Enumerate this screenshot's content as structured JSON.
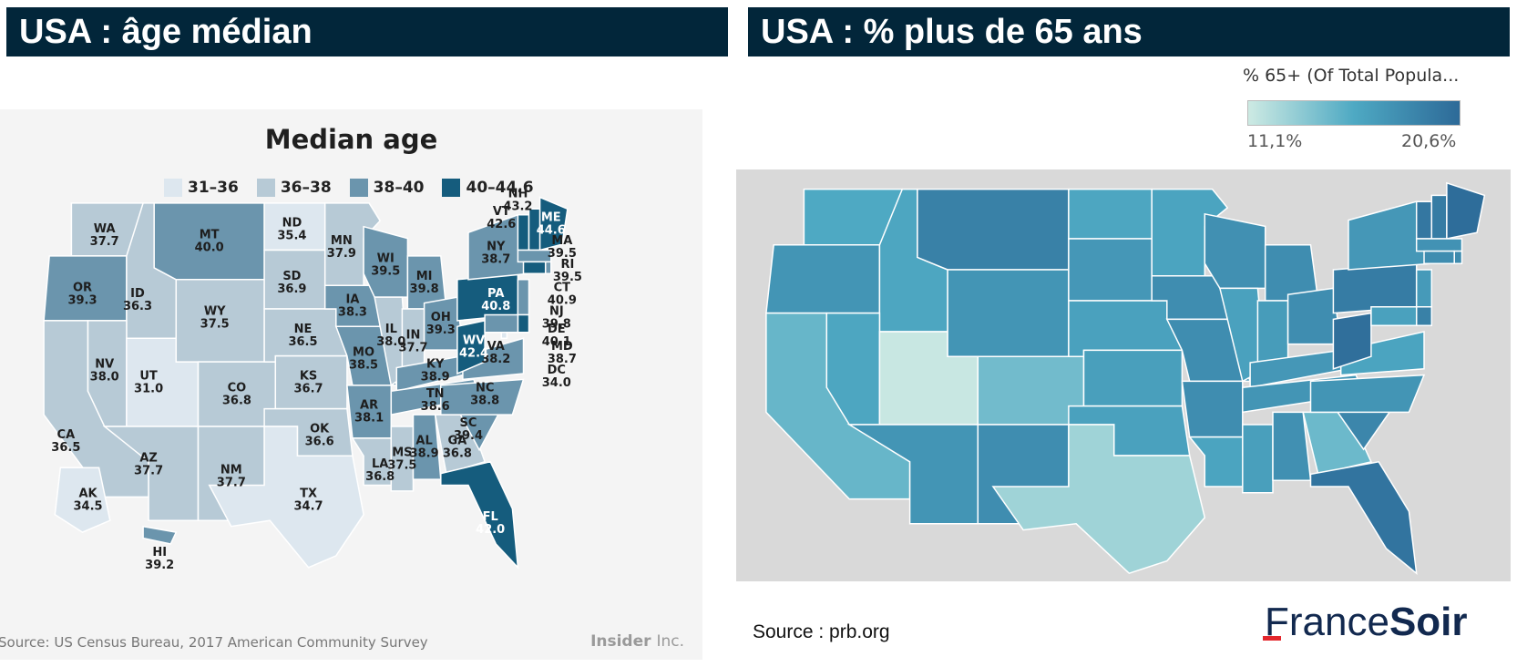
{
  "left": {
    "banner": "USA : âge médian",
    "title": "Median age",
    "legend": [
      {
        "label": "31–36",
        "color": "#dde7ef"
      },
      {
        "label": "36–38",
        "color": "#b7cad6"
      },
      {
        "label": "38–40",
        "color": "#6b95ad"
      },
      {
        "label": "40–44.6",
        "color": "#155c7d"
      }
    ],
    "source": "Source: US Census Bureau, 2017 American Community Survey",
    "logo": {
      "name": "Insider",
      "suffix": "Inc."
    },
    "states": [
      {
        "abbr": "WA",
        "value": "37.7",
        "bin": 1
      },
      {
        "abbr": "OR",
        "value": "39.3",
        "bin": 2
      },
      {
        "abbr": "CA",
        "value": "36.5",
        "bin": 1
      },
      {
        "abbr": "ID",
        "value": "36.3",
        "bin": 1
      },
      {
        "abbr": "NV",
        "value": "38.0",
        "bin": 1
      },
      {
        "abbr": "UT",
        "value": "31.0",
        "bin": 0
      },
      {
        "abbr": "AZ",
        "value": "37.7",
        "bin": 1
      },
      {
        "abbr": "MT",
        "value": "40.0",
        "bin": 2
      },
      {
        "abbr": "WY",
        "value": "37.5",
        "bin": 1
      },
      {
        "abbr": "CO",
        "value": "36.8",
        "bin": 1
      },
      {
        "abbr": "NM",
        "value": "37.7",
        "bin": 1
      },
      {
        "abbr": "ND",
        "value": "35.4",
        "bin": 0
      },
      {
        "abbr": "SD",
        "value": "36.9",
        "bin": 1
      },
      {
        "abbr": "NE",
        "value": "36.5",
        "bin": 1
      },
      {
        "abbr": "KS",
        "value": "36.7",
        "bin": 1
      },
      {
        "abbr": "OK",
        "value": "36.6",
        "bin": 1
      },
      {
        "abbr": "TX",
        "value": "34.7",
        "bin": 0
      },
      {
        "abbr": "MN",
        "value": "37.9",
        "bin": 1
      },
      {
        "abbr": "IA",
        "value": "38.3",
        "bin": 2
      },
      {
        "abbr": "MO",
        "value": "38.5",
        "bin": 2
      },
      {
        "abbr": "AR",
        "value": "38.1",
        "bin": 2
      },
      {
        "abbr": "LA",
        "value": "36.8",
        "bin": 1
      },
      {
        "abbr": "WI",
        "value": "39.5",
        "bin": 2
      },
      {
        "abbr": "IL",
        "value": "38.0",
        "bin": 1
      },
      {
        "abbr": "MS",
        "value": "37.5",
        "bin": 1
      },
      {
        "abbr": "MI",
        "value": "39.8",
        "bin": 2
      },
      {
        "abbr": "IN",
        "value": "37.7",
        "bin": 1
      },
      {
        "abbr": "KY",
        "value": "38.9",
        "bin": 2
      },
      {
        "abbr": "TN",
        "value": "38.6",
        "bin": 2
      },
      {
        "abbr": "AL",
        "value": "38.9",
        "bin": 2
      },
      {
        "abbr": "OH",
        "value": "39.3",
        "bin": 2
      },
      {
        "abbr": "GA",
        "value": "36.8",
        "bin": 1
      },
      {
        "abbr": "FL",
        "value": "42.0",
        "bin": 3
      },
      {
        "abbr": "SC",
        "value": "39.4",
        "bin": 2
      },
      {
        "abbr": "NC",
        "value": "38.8",
        "bin": 2
      },
      {
        "abbr": "VA",
        "value": "38.2",
        "bin": 2
      },
      {
        "abbr": "WV",
        "value": "42.4",
        "bin": 3
      },
      {
        "abbr": "PA",
        "value": "40.8",
        "bin": 3
      },
      {
        "abbr": "NY",
        "value": "38.7",
        "bin": 2
      },
      {
        "abbr": "VT",
        "value": "42.6",
        "bin": 3
      },
      {
        "abbr": "NH",
        "value": "43.2",
        "bin": 3
      },
      {
        "abbr": "ME",
        "value": "44.6",
        "bin": 3
      },
      {
        "abbr": "MA",
        "value": "39.5",
        "bin": 2
      },
      {
        "abbr": "RI",
        "value": "39.5",
        "bin": 2
      },
      {
        "abbr": "CT",
        "value": "40.9",
        "bin": 3
      },
      {
        "abbr": "NJ",
        "value": "39.8",
        "bin": 2
      },
      {
        "abbr": "DE",
        "value": "40.1",
        "bin": 3
      },
      {
        "abbr": "MD",
        "value": "38.7",
        "bin": 2
      },
      {
        "abbr": "DC",
        "value": "34.0",
        "bin": 0
      },
      {
        "abbr": "AK",
        "value": "34.5",
        "bin": 0
      },
      {
        "abbr": "HI",
        "value": "39.2",
        "bin": 2
      }
    ]
  },
  "right": {
    "banner": "USA : % plus de 65 ans",
    "legend_title": "% 65+ (Of Total Popula...",
    "legend_min": "11,1%",
    "legend_max": "20,6%",
    "source": "Source : prb.org",
    "logo": {
      "part1": "France",
      "part2": "Soir"
    },
    "state_shades": {
      "WA": 0.5,
      "OR": 0.66,
      "CA": 0.4,
      "ID": 0.52,
      "NV": 0.52,
      "UT": 0.02,
      "AZ": 0.66,
      "MT": 0.82,
      "WY": 0.66,
      "CO": 0.36,
      "NM": 0.72,
      "ND": 0.52,
      "SD": 0.64,
      "NE": 0.56,
      "KS": 0.58,
      "OK": 0.56,
      "TX": 0.18,
      "MN": 0.54,
      "IA": 0.72,
      "MO": 0.72,
      "AR": 0.72,
      "LA": 0.54,
      "WI": 0.7,
      "IL": 0.56,
      "MS": 0.58,
      "MI": 0.72,
      "IN": 0.6,
      "KY": 0.64,
      "TN": 0.66,
      "AL": 0.7,
      "OH": 0.72,
      "GA": 0.38,
      "FL": 0.92,
      "SC": 0.78,
      "NC": 0.66,
      "VA": 0.54,
      "WV": 0.96,
      "PA": 0.86,
      "NY": 0.64,
      "VT": 0.9,
      "NH": 0.86,
      "ME": 0.98,
      "MA": 0.68,
      "RI": 0.74,
      "CT": 0.72,
      "NJ": 0.62,
      "DE": 0.82,
      "MD": 0.56
    }
  }
}
